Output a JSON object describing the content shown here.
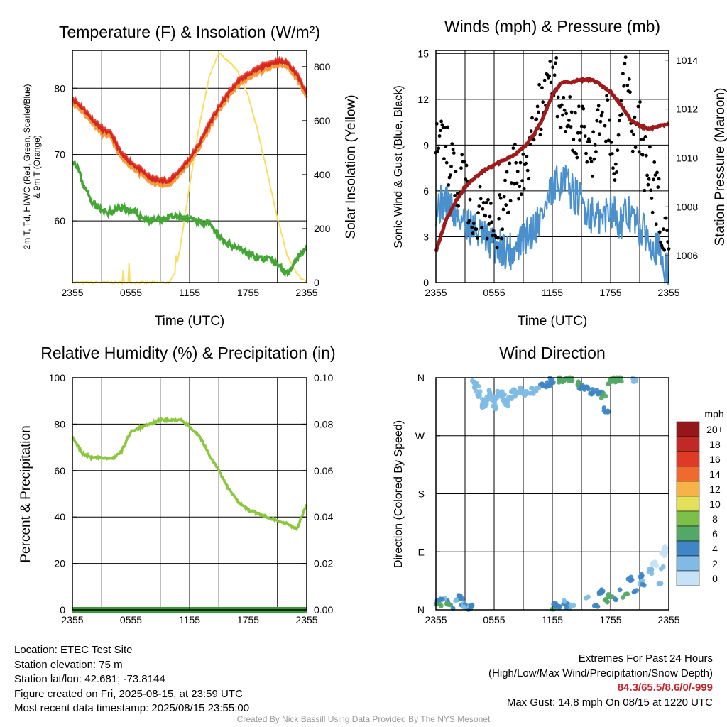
{
  "footer": {
    "location": "Location: ETEC Test Site",
    "elevation": "Station elevation: 75 m",
    "latlon": "Station lat/lon: 42.681; -73.8144",
    "created": "Figure created on Fri, 2025-08-15, at 23:59 UTC",
    "recent": "Most recent data timestamp: 2025/08/15 23:55:00",
    "extremes_title": "Extremes For Past 24 Hours",
    "extremes_legend": "(High/Low/Max Wind/Precipitation/Snow Depth)",
    "extremes_values": "84.3/65.5/8.6/0/-999",
    "max_gust": "Max Gust: 14.8 mph On 08/15 at 1220 UTC",
    "credit": "Created By Nick Bassill Using Data Provided By The NYS Mesonet"
  },
  "colors": {
    "temperature": "#d7261e",
    "heat_index": "#e8483a",
    "nine_m_temp": "#f39a3c",
    "dewpoint": "#43a635",
    "solar": "#f8df62",
    "wind": "#4a90cc",
    "gust": "#000000",
    "pressure": "#9e1b1b",
    "rh": "#8cc63f",
    "precip": "#3a9a3a"
  },
  "chart_data": [
    {
      "type": "line",
      "title": "Temperature (F) & Insolation (W/m²)",
      "xlabel": "Time (UTC)",
      "ylabel": "2m T, Td, HI/WC (Red, Green, Scarlet/Blue) & 9m T (Orange)",
      "y2label": "Solar Insolation (Yellow)",
      "xticks": [
        "2355",
        "0555",
        "1155",
        "1755",
        "2355"
      ],
      "ylim": [
        50.7,
        85.7
      ],
      "yticks": [
        60,
        70,
        80
      ],
      "y2lim": [
        0,
        860
      ],
      "y2ticks": [
        0,
        200,
        400,
        600,
        800
      ],
      "grid": true,
      "series": [
        {
          "role": "temperature",
          "axis": "left",
          "x": [
            0,
            1,
            2,
            3,
            4,
            5,
            6,
            7,
            8,
            9,
            10,
            11,
            12,
            13,
            14,
            15,
            16,
            17,
            18,
            19,
            20,
            21,
            22,
            23,
            24
          ],
          "y": [
            78.3,
            77.0,
            75.3,
            73.8,
            73.0,
            70.0,
            68.7,
            67.6,
            66.3,
            66.0,
            66.0,
            67.5,
            69.3,
            71.5,
            74.5,
            77.0,
            79.2,
            81.0,
            82.0,
            82.8,
            83.5,
            84.0,
            83.8,
            82.0,
            79.0
          ]
        },
        {
          "role": "dewpoint",
          "axis": "left",
          "x": [
            0,
            0.5,
            1,
            2,
            3,
            4,
            5,
            6,
            7,
            8,
            9,
            10,
            11,
            12,
            13,
            14,
            15,
            16,
            17,
            18,
            19,
            20,
            21,
            22,
            23,
            24
          ],
          "y": [
            69.2,
            68.3,
            65.8,
            63.0,
            61.5,
            61.2,
            62.0,
            61.5,
            60.6,
            60.0,
            60.3,
            60.6,
            60.5,
            60.2,
            60.0,
            59.5,
            57.5,
            56.5,
            56.0,
            55.0,
            54.5,
            54.2,
            53.5,
            52.0,
            54.5,
            56.0
          ]
        },
        {
          "role": "solar",
          "axis": "right",
          "x": [
            0,
            1,
            2,
            3,
            4,
            5,
            6,
            7,
            8,
            9,
            10,
            10.5,
            11,
            11.5,
            12,
            13,
            14,
            15,
            16,
            17,
            18,
            19,
            20,
            21,
            22,
            23,
            24
          ],
          "y": [
            0,
            0,
            0,
            0,
            0,
            0,
            0,
            0,
            0,
            0,
            0,
            40,
            120,
            240,
            360,
            580,
            760,
            850,
            820,
            780,
            690,
            560,
            400,
            240,
            100,
            30,
            0
          ]
        }
      ]
    },
    {
      "type": "line",
      "title": "Winds (mph) & Pressure (mb)",
      "xlabel": "Time (UTC)",
      "ylabel": "Sonic Wind & Gust (Blue, Black)",
      "y2label": "Station Pressure (Maroon)",
      "xticks": [
        "2355",
        "0555",
        "1155",
        "1755",
        "2355"
      ],
      "ylim": [
        0,
        15.2
      ],
      "yticks": [
        0,
        3,
        6,
        9,
        12,
        15
      ],
      "y2lim": [
        1004.9,
        1014.4
      ],
      "y2ticks": [
        1006,
        1008,
        1010,
        1012,
        1014
      ],
      "grid": true,
      "series": [
        {
          "role": "wind",
          "axis": "left",
          "x": [
            0,
            1,
            2,
            3,
            4,
            5,
            6,
            7,
            8,
            9,
            10,
            11,
            12,
            13,
            14,
            15,
            16,
            17,
            18,
            19,
            20,
            21,
            22,
            23,
            24
          ],
          "y": [
            5.0,
            5.3,
            4.5,
            4.0,
            3.5,
            2.8,
            2.5,
            2.2,
            2.0,
            2.8,
            3.5,
            4.5,
            6.0,
            6.8,
            6.0,
            5.2,
            4.5,
            4.0,
            5.0,
            4.0,
            4.5,
            3.5,
            3.0,
            2.0,
            0.5
          ]
        },
        {
          "role": "gust",
          "axis": "left",
          "style": "points",
          "x": [
            0,
            0.5,
            1,
            1.5,
            2,
            2.5,
            3,
            3.5,
            4,
            4.5,
            5,
            5.5,
            6,
            6.5,
            7,
            7.5,
            8,
            8.5,
            9,
            9.5,
            10,
            10.5,
            11,
            11.5,
            12,
            12.5,
            13,
            13.5,
            14,
            14.5,
            15,
            15.5,
            16,
            16.5,
            17,
            17.5,
            18,
            18.5,
            19,
            19.5,
            20,
            20.5,
            21,
            21.5,
            22,
            22.5,
            23,
            23.5,
            24
          ],
          "y": [
            10.5,
            10.0,
            8.5,
            8.0,
            7.0,
            6.8,
            6.0,
            5.5,
            5.0,
            4.8,
            4.5,
            4.0,
            4.5,
            4.0,
            5.0,
            6.0,
            7.0,
            7.5,
            6.5,
            8.0,
            9.5,
            10.5,
            12.0,
            13.5,
            14.0,
            12.5,
            11.0,
            12.0,
            10.0,
            9.5,
            11.5,
            10.0,
            9.0,
            8.0,
            12.5,
            11.0,
            10.0,
            8.5,
            11.0,
            13.0,
            12.0,
            9.0,
            10.5,
            8.0,
            7.0,
            6.0,
            5.0,
            3.5,
            1.5
          ]
        },
        {
          "role": "pressure",
          "axis": "right",
          "x": [
            0,
            1,
            2,
            3,
            4,
            5,
            6,
            7,
            8,
            9,
            10,
            11,
            12,
            13,
            14,
            15,
            16,
            17,
            18,
            19,
            20,
            21,
            22,
            23,
            24
          ],
          "y": [
            1006.2,
            1007.4,
            1008.2,
            1008.8,
            1009.2,
            1009.5,
            1009.7,
            1009.9,
            1010.1,
            1010.4,
            1010.9,
            1011.6,
            1012.6,
            1013.1,
            1013.1,
            1013.2,
            1013.2,
            1013.0,
            1012.7,
            1012.2,
            1011.6,
            1011.3,
            1011.2,
            1011.3,
            1011.4
          ]
        }
      ]
    },
    {
      "type": "line",
      "title": "Relative Humidity (%) & Precipitation (in)",
      "xlabel": "",
      "ylabel": "Percent & Precipitation",
      "xticks": [
        "2355",
        "0555",
        "1155",
        "1755",
        "2355"
      ],
      "ylim": [
        0,
        100
      ],
      "yticks": [
        0,
        20,
        40,
        60,
        80,
        100
      ],
      "y2lim": [
        0,
        0.1
      ],
      "y2ticks": [
        "0.00",
        "0.02",
        "0.04",
        "0.06",
        "0.08",
        "0.10"
      ],
      "grid": true,
      "series": [
        {
          "role": "rh",
          "axis": "left",
          "x": [
            0,
            0.5,
            1,
            2,
            3,
            4,
            5,
            6,
            7,
            8,
            9,
            10,
            11,
            12,
            13,
            14,
            15,
            16,
            17,
            18,
            19,
            20,
            21,
            22,
            23,
            24
          ],
          "y": [
            74.0,
            71.0,
            67.5,
            65.5,
            65.5,
            65.0,
            68.0,
            77.0,
            78.5,
            80.0,
            82.0,
            81.5,
            82.0,
            79.0,
            75.0,
            67.0,
            60.0,
            52.0,
            46.5,
            43.0,
            41.5,
            40.0,
            38.5,
            37.0,
            35.0,
            45.5
          ]
        },
        {
          "role": "precip",
          "axis": "right",
          "x": [
            0,
            24
          ],
          "y": [
            0,
            0
          ]
        }
      ]
    },
    {
      "type": "scatter",
      "title": "Wind Direction",
      "xlabel": "",
      "ylabel": "Direction (Colored By Speed)",
      "xticks": [
        "2355",
        "0555",
        "1155",
        "1755",
        "2355"
      ],
      "yticks": [
        "N",
        "E",
        "S",
        "W",
        "N"
      ],
      "ylim": [
        0,
        360
      ],
      "grid": true,
      "colorbar": {
        "title": "mph",
        "labels": [
          "0",
          "2",
          "4",
          "6",
          "8",
          "10",
          "12",
          "14",
          "16",
          "18",
          "20+"
        ],
        "colors": [
          "#c6e2f6",
          "#7fbbe4",
          "#3e86c4",
          "#54a865",
          "#7cc04a",
          "#e5e05a",
          "#f9b248",
          "#ef6a2e",
          "#df3a26",
          "#c02a24",
          "#94181a"
        ]
      },
      "points_upper": {
        "x": [
          4.0,
          4.2,
          4.5,
          4.8,
          5.0,
          5.3,
          5.5,
          5.8,
          6.0,
          6.3,
          6.6,
          7.0,
          7.3,
          7.6,
          8.0,
          8.3,
          8.7,
          9.0,
          9.5,
          10.0,
          10.5,
          11.0,
          11.5,
          12.0,
          12.5,
          13.0,
          13.5,
          14.0,
          14.5,
          15.0,
          15.5,
          16.0,
          16.5,
          17.0,
          17.3,
          17.5,
          18.0,
          18.5,
          19.0,
          20.5
        ],
        "dir": [
          355,
          342,
          335,
          322,
          318,
          328,
          336,
          326,
          316,
          330,
          336,
          329,
          320,
          331,
          337,
          332,
          340,
          336,
          337,
          339,
          343,
          350,
          348,
          355,
          358,
          357,
          359,
          358,
          352,
          345,
          344,
          339,
          338,
          336,
          332,
          311,
          355,
          358,
          358,
          356
        ],
        "speed": [
          3,
          3,
          3,
          2,
          2,
          3,
          2,
          2,
          2,
          2,
          3,
          3,
          3,
          2,
          2,
          3,
          3,
          3,
          3,
          3,
          3,
          4,
          5,
          5,
          7,
          6,
          7,
          6,
          6,
          5,
          4,
          4,
          5,
          4,
          7,
          4,
          6,
          6,
          7,
          3
        ]
      },
      "points_lower": {
        "x": [
          0.1,
          0.3,
          0.5,
          0.8,
          1.0,
          1.3,
          1.6,
          2.0,
          2.3,
          2.5,
          2.8,
          3.0,
          3.3,
          3.5,
          12.0,
          12.3,
          12.6,
          13.0,
          13.3,
          13.6,
          14.0,
          15.5,
          16.0,
          16.5,
          17.0,
          17.5,
          18.0,
          18.5,
          19.0,
          19.5,
          20.0,
          20.5,
          21.0,
          21.3,
          21.5,
          22.0,
          22.5,
          23.0,
          23.3,
          23.5,
          23.7
        ],
        "dir": [
          13,
          10,
          17,
          14,
          11,
          8,
          5,
          15,
          22,
          18,
          9,
          6,
          3,
          4,
          4,
          6,
          5,
          8,
          12,
          7,
          5,
          20,
          14,
          8,
          28,
          15,
          22,
          14,
          32,
          21,
          48,
          28,
          55,
          42,
          36,
          60,
          72,
          40,
          65,
          88,
          95
        ],
        "speed": [
          5,
          6,
          4,
          3,
          4,
          6,
          4,
          3,
          4,
          5,
          4,
          3,
          4,
          4,
          6,
          5,
          4,
          4,
          3,
          4,
          3,
          3,
          4,
          4,
          5,
          7,
          6,
          5,
          4,
          6,
          4,
          5,
          4,
          3,
          4,
          2,
          1,
          3,
          2,
          1,
          1
        ]
      }
    }
  ]
}
